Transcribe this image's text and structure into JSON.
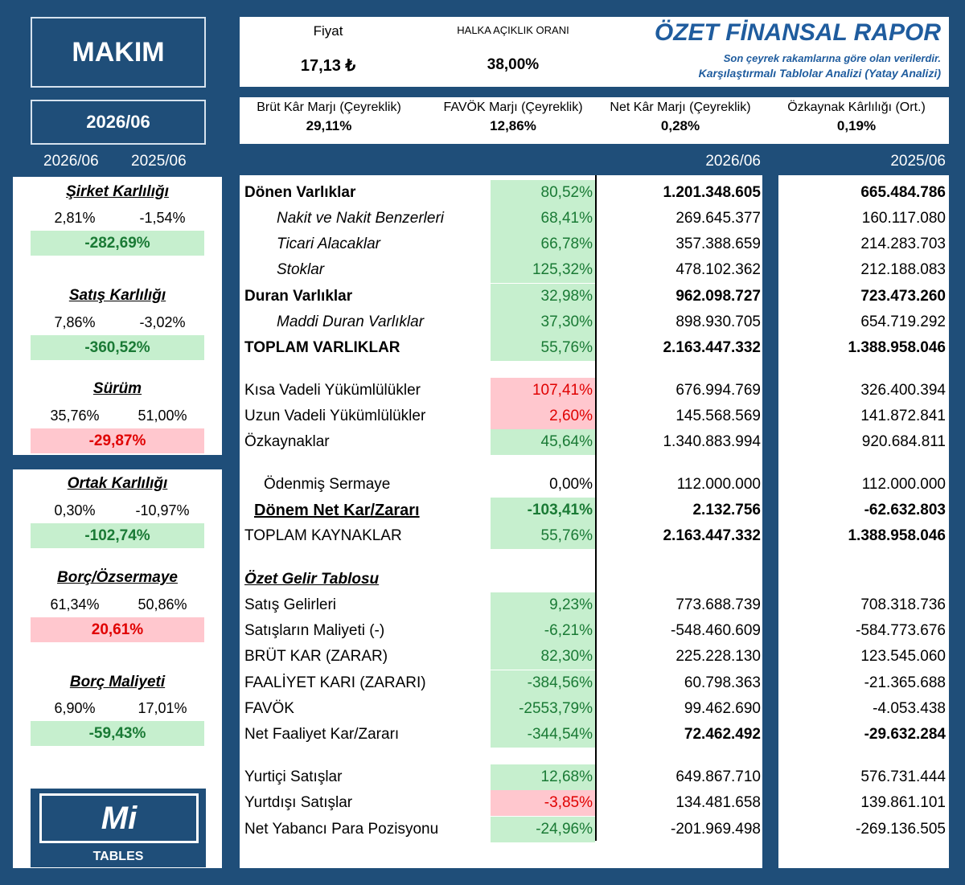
{
  "ticker": "MAKIM",
  "period": "2026/06",
  "left_col_headers": [
    "2026/06",
    "2025/06"
  ],
  "header": {
    "price_label": "Fiyat",
    "price_value": "17,13 ₺",
    "float_label": "HALKA AÇIKLIK ORANI",
    "float_value": "38,00%",
    "title": "ÖZET FİNANSAL RAPOR",
    "subtitle1": "Son çeyrek rakamlarına göre olan verilerdir.",
    "subtitle2": "Karşılaştırmalı Tablolar Analizi (Yatay Analizi)"
  },
  "metrics": [
    {
      "label": "Brüt Kâr Marjı (Çeyreklik)",
      "value": "29,11%"
    },
    {
      "label": "FAVÖK Marjı (Çeyreklik)",
      "value": "12,86%"
    },
    {
      "label": "Net Kâr Marjı (Çeyreklik)",
      "value": "0,28%"
    },
    {
      "label": "Özkaynak Kârlılığı (Ort.)",
      "value": "0,19%"
    }
  ],
  "main_col_headers": [
    "2026/06",
    "2025/06"
  ],
  "ratios": [
    {
      "title": "Şirket Karlılığı",
      "v1": "2,81%",
      "v2": "-1,54%",
      "change": "-282,69%",
      "status": "good"
    },
    {
      "title": "Satış Karlılığı",
      "v1": "7,86%",
      "v2": "-3,02%",
      "change": "-360,52%",
      "status": "good"
    },
    {
      "title": "Sürüm",
      "v1": "35,76%",
      "v2": "51,00%",
      "change": "-29,87%",
      "status": "bad"
    },
    {
      "title": "Ortak Karlılığı",
      "v1": "0,30%",
      "v2": "-10,97%",
      "change": "-102,74%",
      "status": "good"
    },
    {
      "title": "Borç/Özsermaye",
      "v1": "61,34%",
      "v2": "50,86%",
      "change": "20,61%",
      "status": "bad"
    },
    {
      "title": "Borç Maliyeti",
      "v1": "6,90%",
      "v2": "17,01%",
      "change": "-59,43%",
      "status": "good"
    }
  ],
  "logo": {
    "mark": "Mi",
    "text": "TABLES"
  },
  "rows": [
    {
      "label": "Dönen Varlıklar",
      "change": "80,52%",
      "v1": "1.201.348.605",
      "v2": "665.484.786"
    },
    {
      "label": "Nakit ve Nakit Benzerleri",
      "change": "68,41%",
      "v1": "269.645.377",
      "v2": "160.117.080"
    },
    {
      "label": "Ticari Alacaklar",
      "change": "66,78%",
      "v1": "357.388.659",
      "v2": "214.283.703"
    },
    {
      "label": "Stoklar",
      "change": "125,32%",
      "v1": "478.102.362",
      "v2": "212.188.083"
    },
    {
      "label": "Duran Varlıklar",
      "change": "32,98%",
      "v1": "962.098.727",
      "v2": "723.473.260"
    },
    {
      "label": "Maddi Duran Varlıklar",
      "change": "37,30%",
      "v1": "898.930.705",
      "v2": "654.719.292"
    },
    {
      "label": "TOPLAM VARLIKLAR",
      "change": "55,76%",
      "v1": "2.163.447.332",
      "v2": "1.388.958.046"
    },
    {
      "label": "Kısa Vadeli Yükümlülükler",
      "change": "107,41%",
      "v1": "676.994.769",
      "v2": "326.400.394"
    },
    {
      "label": "Uzun Vadeli Yükümlülükler",
      "change": "2,60%",
      "v1": "145.568.569",
      "v2": "141.872.841"
    },
    {
      "label": "Özkaynaklar",
      "change": "45,64%",
      "v1": "1.340.883.994",
      "v2": "920.684.811"
    },
    {
      "label": "Ödenmiş Sermaye",
      "change": "0,00%",
      "v1": "112.000.000",
      "v2": "112.000.000"
    },
    {
      "label": "Dönem Net Kar/Zararı",
      "change": "-103,41%",
      "v1": "2.132.756",
      "v2": "-62.632.803"
    },
    {
      "label": "TOPLAM KAYNAKLAR",
      "change": "55,76%",
      "v1": "2.163.447.332",
      "v2": "1.388.958.046"
    },
    {
      "label": "Özet Gelir Tablosu",
      "change": "",
      "v1": "",
      "v2": ""
    },
    {
      "label": "Satış Gelirleri",
      "change": "9,23%",
      "v1": "773.688.739",
      "v2": "708.318.736"
    },
    {
      "label": "Satışların Maliyeti (-)",
      "change": "-6,21%",
      "v1": "-548.460.609",
      "v2": "-584.773.676"
    },
    {
      "label": "BRÜT KAR (ZARAR)",
      "change": "82,30%",
      "v1": "225.228.130",
      "v2": "123.545.060"
    },
    {
      "label": "FAALİYET KARI (ZARARI)",
      "change": "-384,56%",
      "v1": "60.798.363",
      "v2": "-21.365.688"
    },
    {
      "label": "FAVÖK",
      "change": "-2553,79%",
      "v1": "99.462.690",
      "v2": "-4.053.438"
    },
    {
      "label": "Net Faaliyet Kar/Zararı",
      "change": "-344,54%",
      "v1": "72.462.492",
      "v2": "-29.632.284"
    },
    {
      "label": "Yurtiçi Satışlar",
      "change": "12,68%",
      "v1": "649.867.710",
      "v2": "576.731.444"
    },
    {
      "label": "Yurtdışı Satışlar",
      "change": "-3,85%",
      "v1": "134.481.658",
      "v2": "139.861.101"
    },
    {
      "label": "Net Yabancı Para Pozisyonu",
      "change": "-24,96%",
      "v1": "-201.969.498",
      "v2": "-269.136.505"
    }
  ],
  "colors": {
    "navy": "#1f4e79",
    "good_bg": "#c6efce",
    "good_fg": "#1a7a35",
    "bad_bg": "#ffc7ce",
    "bad_fg": "#e00000",
    "title_blue": "#1f5c9e"
  }
}
